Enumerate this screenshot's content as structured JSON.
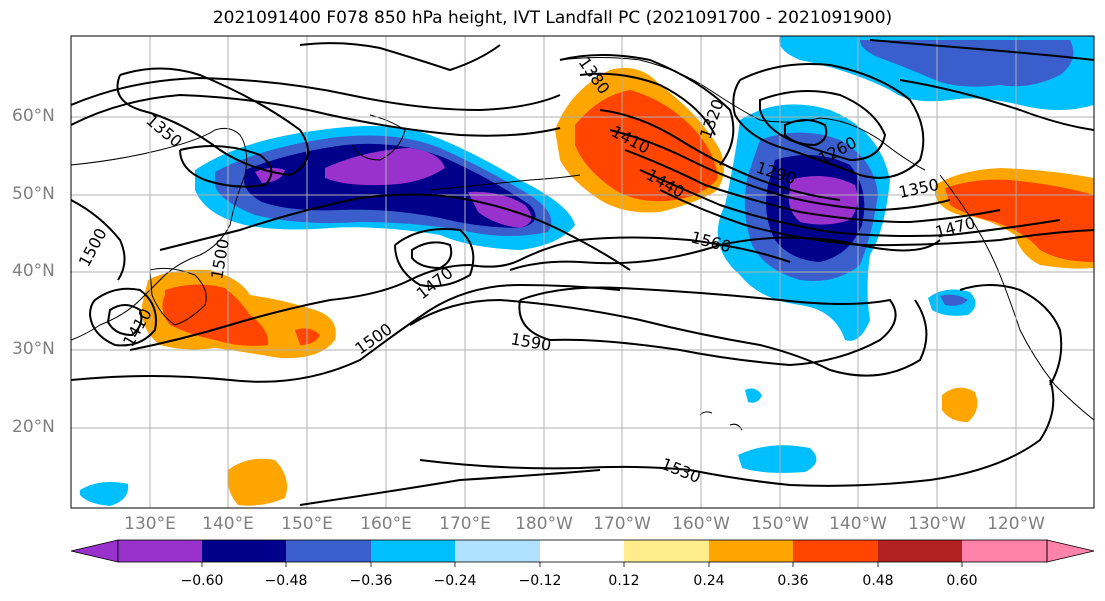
{
  "title": "2021091400 F078 850 hPa height, IVT Landfall PC (2021091700 - 2021091900)",
  "latitude_labels": [
    "60°N",
    "50°N",
    "40°N",
    "30°N",
    "20°N"
  ],
  "longitude_labels": [
    "130°E",
    "140°E",
    "150°E",
    "160°E",
    "170°E",
    "180°W",
    "170°W",
    "160°W",
    "150°W",
    "140°W",
    "130°W",
    "120°W"
  ],
  "contour_labels": [
    "1350",
    "1380",
    "1320",
    "1410",
    "1440",
    "1290",
    "1260",
    "1350",
    "1470",
    "1560",
    "1500",
    "1470",
    "1500",
    "1590",
    "1410",
    "1530",
    "1500"
  ],
  "colorbar": {
    "ticks": [
      "−0.60",
      "−0.48",
      "−0.36",
      "−0.24",
      "−0.12",
      "0.12",
      "0.24",
      "0.36",
      "0.48",
      "0.60"
    ],
    "colors": [
      "#9932cc",
      "#00008b",
      "#3a5fcd",
      "#00bfff",
      "#b0e2ff",
      "#ffffff",
      "#ffec8b",
      "#ffa500",
      "#ff4500",
      "#b22222",
      "#ff82ab"
    ]
  },
  "colors": {
    "purple": "#9932cc",
    "navy": "#00008b",
    "blue": "#3a5fcd",
    "deep_sky": "#00bfff",
    "light_blue": "#b0e2ff",
    "yellow": "#ffec8b",
    "orange": "#ffa500",
    "red_orange": "#ff4500",
    "firebrick": "#b22222",
    "pink": "#ff82ab"
  }
}
